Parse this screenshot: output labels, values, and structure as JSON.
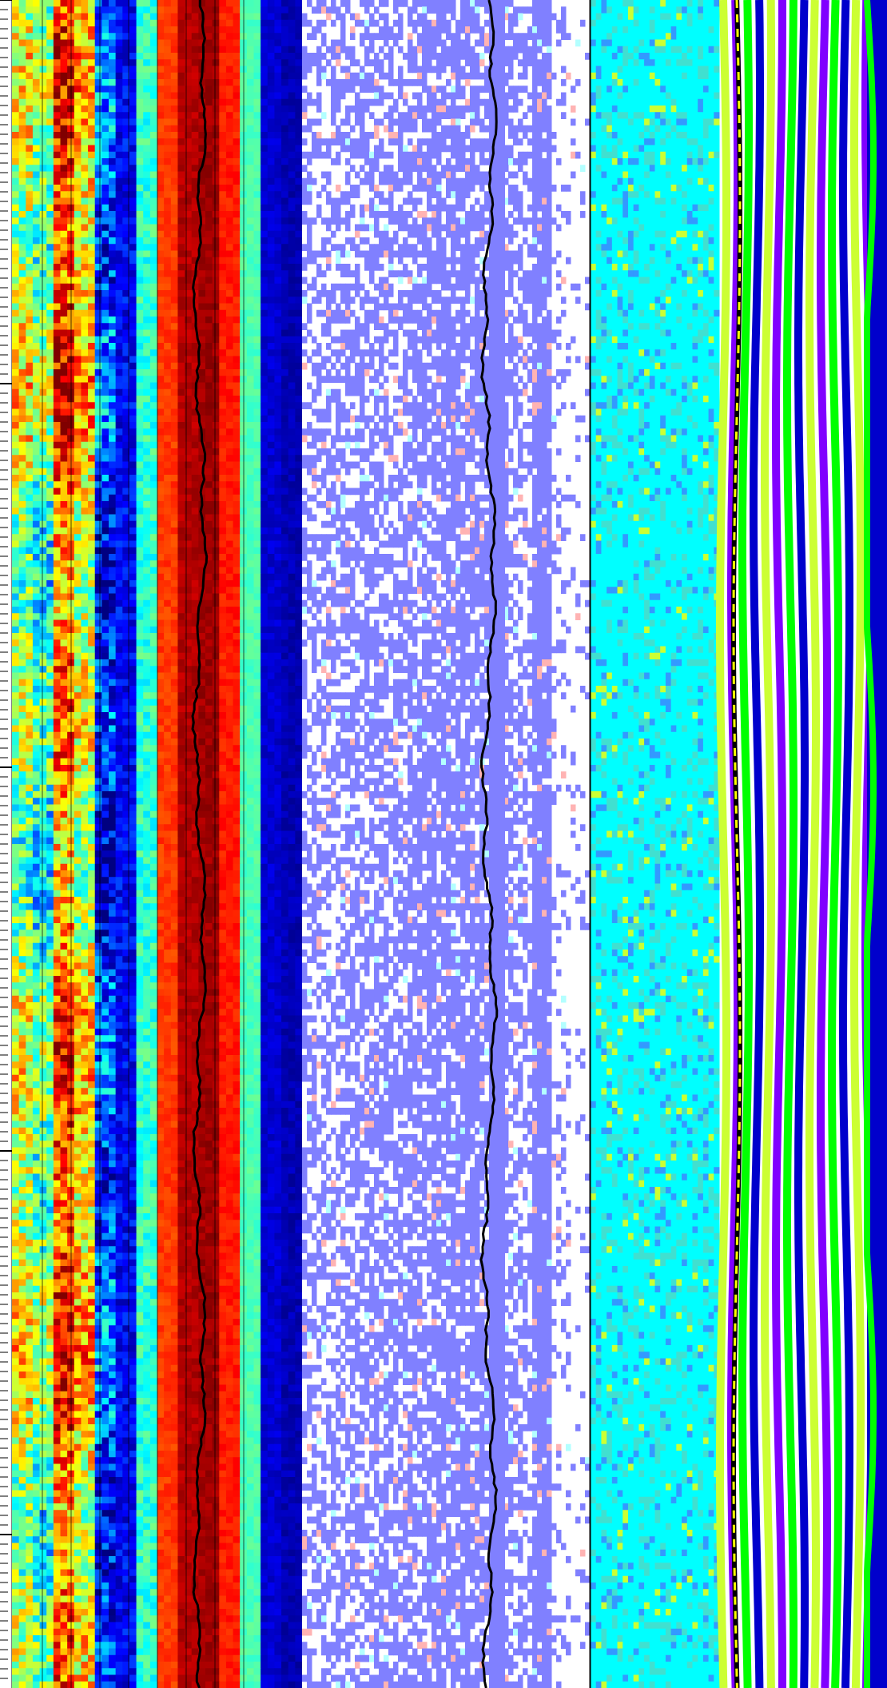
{
  "chart_data": [
    {
      "type": "heatmap",
      "title": "",
      "xlabel": "",
      "ylabel": "",
      "colormap": "jet",
      "colors": [
        "#00007f",
        "#0000ff",
        "#00bfff",
        "#7fff7f",
        "#ffff00",
        "#ff7f00",
        "#ff0000"
      ],
      "trace_color": "#000000",
      "row_count": 256,
      "band_profile": [
        {
          "channel": 0,
          "level": 0.55
        },
        {
          "channel": 1,
          "level": 0.45
        },
        {
          "channel": 2,
          "level": 0.78
        },
        {
          "channel": 3,
          "level": 0.62
        },
        {
          "channel": 4,
          "level": 0.18
        },
        {
          "channel": 5,
          "level": 0.12
        },
        {
          "channel": 6,
          "level": 0.42
        },
        {
          "channel": 7,
          "level": 0.82
        },
        {
          "channel": 8,
          "level": 0.95
        },
        {
          "channel": 9,
          "level": 0.97
        },
        {
          "channel": 10,
          "level": 0.85
        },
        {
          "channel": 11,
          "level": 0.45
        },
        {
          "channel": 12,
          "level": 0.08
        },
        {
          "channel": 13,
          "level": 0.05
        }
      ]
    },
    {
      "type": "heatmap",
      "title": "",
      "xlabel": "",
      "ylabel": "",
      "colors": [
        "#ffffff",
        "#8080ff",
        "#ffb3b3",
        "#b3ffff"
      ],
      "trace_color": "#000000",
      "row_count": 256,
      "density_profile": [
        0.5,
        0.55,
        0.6,
        0.65,
        0.62,
        0.7,
        0.75,
        0.8,
        0.78,
        0.7,
        0.55,
        0.95,
        0.2,
        0.1
      ]
    },
    {
      "type": "heatmap",
      "title": "",
      "xlabel": "",
      "ylabel": "",
      "colors": [
        "#00ffff",
        "#40e0d0",
        "#3399ff",
        "#ccff33",
        "#8000ff",
        "#00ff00",
        "#0000cc",
        "#000000"
      ],
      "trace_color": "#ffff00",
      "row_count": 256,
      "stripe_count": 14
    }
  ]
}
